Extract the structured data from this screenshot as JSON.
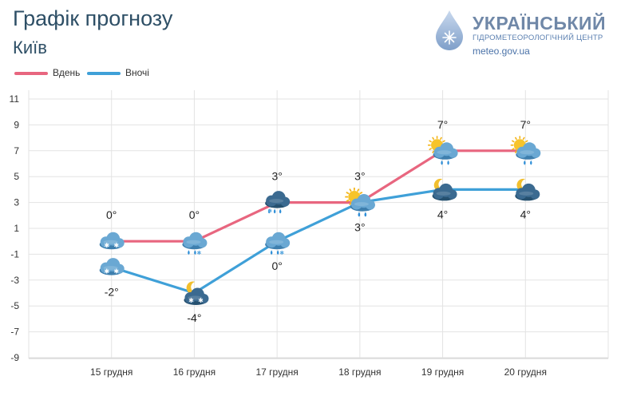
{
  "header": {
    "title": "Графік прогнозу",
    "city": "Київ"
  },
  "logo": {
    "name": "УКРАЇНСЬКИЙ",
    "subtitle": "ГІДРОМЕТЕОРОЛОГІЧНИЙ ЦЕНТР",
    "site": "meteo.gov.ua"
  },
  "colors": {
    "day": "#e8667f",
    "night": "#3fa0d8",
    "grid": "#e3e3e3",
    "axis_text": "#333333"
  },
  "chart_data": {
    "type": "line",
    "categories": [
      "15 грудня",
      "16 грудня",
      "17 грудня",
      "18 грудня",
      "19 грудня",
      "20 грудня"
    ],
    "series": [
      {
        "name": "Вдень",
        "values": [
          0,
          0,
          3,
          3,
          7,
          7
        ],
        "labels": [
          "0°",
          "0°",
          "3°",
          "3°",
          "7°",
          "7°"
        ],
        "icons": [
          "cloud-snow-icon",
          "cloud-rain-snow-icon",
          "storm-cloud-snow-icon",
          "sun-cloud-rain-icon",
          "sun-cloud-rain-icon",
          "sun-cloud-rain-icon"
        ]
      },
      {
        "name": "Вночі",
        "values": [
          -2,
          -4,
          0,
          3,
          4,
          4
        ],
        "labels": [
          "-2°",
          "-4°",
          "0°",
          "3°",
          "4°",
          "4°"
        ],
        "icons": [
          "cloud-snow-icon",
          "moon-cloud-snow-icon",
          "cloud-rain-snow-icon",
          "sun-cloud-rain-icon",
          "moon-cloud-icon",
          "moon-cloud-icon"
        ]
      }
    ],
    "ylim": [
      -9,
      11
    ],
    "yticks": [
      "11",
      "9",
      "7",
      "5",
      "3",
      "1",
      "-1",
      "-3",
      "-5",
      "-7",
      "-9"
    ],
    "ytick_values": [
      11,
      9,
      7,
      5,
      3,
      1,
      -1,
      -3,
      -5,
      -7,
      -9
    ],
    "grid": true,
    "legend": "top-left"
  }
}
